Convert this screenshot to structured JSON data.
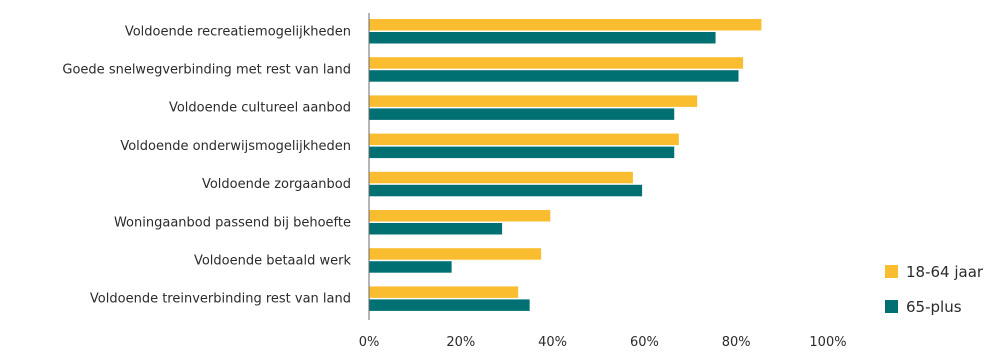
{
  "chart_data": {
    "type": "bar",
    "orientation": "horizontal",
    "title": "",
    "xlabel": "",
    "ylabel": "",
    "xlim": [
      0,
      100
    ],
    "x_ticks": [
      "0%",
      "20%",
      "40%",
      "60%",
      "80%",
      "100%"
    ],
    "x_tick_values": [
      0,
      20,
      40,
      60,
      80,
      100
    ],
    "grid": false,
    "legend_position": "bottom-right",
    "categories": [
      "Voldoende recreatiemogelijkheden",
      "Goede snelwegverbinding met rest van land",
      "Voldoende cultureel aanbod",
      "Voldoende onderwijsmogelijkheden",
      "Voldoende zorgaanbod",
      "Woningaanbod passend bij behoefte",
      "Voldoende betaald werk",
      "Voldoende treinverbinding rest van land"
    ],
    "series": [
      {
        "name": "18-64 jaar",
        "color": "#fbbd30",
        "values": [
          85.5,
          81.5,
          71.5,
          67.5,
          57.5,
          39.5,
          37.5,
          32.5
        ]
      },
      {
        "name": "65-plus",
        "color": "#017072",
        "values": [
          75.5,
          80.5,
          66.5,
          66.5,
          59.5,
          29.0,
          18.0,
          35.0
        ]
      }
    ]
  }
}
